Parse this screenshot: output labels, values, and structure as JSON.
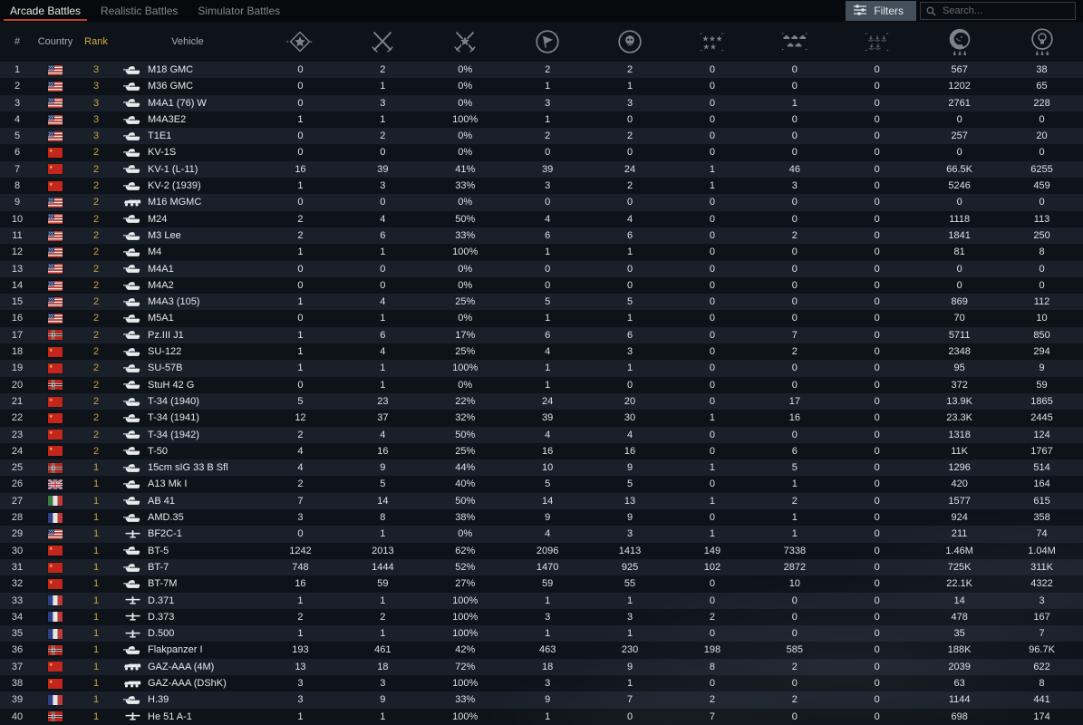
{
  "tabs": [
    {
      "label": "Arcade Battles",
      "active": true
    },
    {
      "label": "Realistic Battles",
      "active": false
    },
    {
      "label": "Simulator Battles",
      "active": false
    }
  ],
  "filters_button": {
    "label": "Filters"
  },
  "search": {
    "placeholder": "Search..."
  },
  "colors": {
    "background": "#0e1319",
    "row_stripe": "#19202a",
    "tab_underline": "#b5442a",
    "rank_gold": "#c9a23f",
    "icon_gray": "#7b838e"
  },
  "table": {
    "headers": {
      "num": "#",
      "country": "Country",
      "rank": "Rank",
      "vehicle": "Vehicle"
    },
    "stat_columns": [
      {
        "name": "respawns",
        "icon": "spawn-star-icon"
      },
      {
        "name": "battles",
        "icon": "crossed-swords-icon"
      },
      {
        "name": "win-rate",
        "icon": "victories-swords-star-icon"
      },
      {
        "name": "missions",
        "icon": "flag-circle-icon"
      },
      {
        "name": "deaths",
        "icon": "skull-circle-icon"
      },
      {
        "name": "air-targets-destroyed",
        "icon": "air-targets-stars-icon"
      },
      {
        "name": "ground-targets-destroyed",
        "icon": "ground-targets-tanks-icon"
      },
      {
        "name": "naval-targets-destroyed",
        "icon": "naval-targets-anchors-icon"
      },
      {
        "name": "silver-lions-earned",
        "icon": "silver-lion-icon"
      },
      {
        "name": "research-points-earned",
        "icon": "research-bulb-icon"
      }
    ],
    "rows": [
      {
        "num": 1,
        "country": "usa",
        "rank": "3",
        "vehicle": "M18 GMC",
        "type": "tank",
        "stats": [
          "0",
          "2",
          "0%",
          "2",
          "2",
          "0",
          "0",
          "0",
          "567",
          "38"
        ]
      },
      {
        "num": 2,
        "country": "usa",
        "rank": "3",
        "vehicle": "M36 GMC",
        "type": "tank",
        "stats": [
          "0",
          "1",
          "0%",
          "1",
          "1",
          "0",
          "0",
          "0",
          "1202",
          "65"
        ]
      },
      {
        "num": 3,
        "country": "usa",
        "rank": "3",
        "vehicle": "M4A1 (76) W",
        "type": "tank",
        "stats": [
          "0",
          "3",
          "0%",
          "3",
          "3",
          "0",
          "1",
          "0",
          "2761",
          "228"
        ]
      },
      {
        "num": 4,
        "country": "usa",
        "rank": "3",
        "vehicle": "M4A3E2",
        "type": "tank",
        "stats": [
          "1",
          "1",
          "100%",
          "1",
          "0",
          "0",
          "0",
          "0",
          "0",
          "0"
        ]
      },
      {
        "num": 5,
        "country": "usa",
        "rank": "3",
        "vehicle": "T1E1",
        "type": "tank",
        "stats": [
          "0",
          "2",
          "0%",
          "2",
          "2",
          "0",
          "0",
          "0",
          "257",
          "20"
        ]
      },
      {
        "num": 6,
        "country": "ussr",
        "rank": "2",
        "vehicle": "KV-1S",
        "type": "tank",
        "stats": [
          "0",
          "0",
          "0%",
          "0",
          "0",
          "0",
          "0",
          "0",
          "0",
          "0"
        ]
      },
      {
        "num": 7,
        "country": "ussr",
        "rank": "2",
        "vehicle": "KV-1 (L-11)",
        "type": "tank",
        "stats": [
          "16",
          "39",
          "41%",
          "39",
          "24",
          "1",
          "46",
          "0",
          "66.5K",
          "6255"
        ]
      },
      {
        "num": 8,
        "country": "ussr",
        "rank": "2",
        "vehicle": "KV-2 (1939)",
        "type": "tank",
        "stats": [
          "1",
          "3",
          "33%",
          "3",
          "2",
          "1",
          "3",
          "0",
          "5246",
          "459"
        ]
      },
      {
        "num": 9,
        "country": "usa",
        "rank": "2",
        "vehicle": "M16 MGMC",
        "type": "truck",
        "stats": [
          "0",
          "0",
          "0%",
          "0",
          "0",
          "0",
          "0",
          "0",
          "0",
          "0"
        ]
      },
      {
        "num": 10,
        "country": "usa",
        "rank": "2",
        "vehicle": "M24",
        "type": "tank",
        "stats": [
          "2",
          "4",
          "50%",
          "4",
          "4",
          "0",
          "0",
          "0",
          "1118",
          "113"
        ]
      },
      {
        "num": 11,
        "country": "usa",
        "rank": "2",
        "vehicle": "M3 Lee",
        "type": "tank",
        "stats": [
          "2",
          "6",
          "33%",
          "6",
          "6",
          "0",
          "2",
          "0",
          "1841",
          "250"
        ]
      },
      {
        "num": 12,
        "country": "usa",
        "rank": "2",
        "vehicle": "M4",
        "type": "tank",
        "stats": [
          "1",
          "1",
          "100%",
          "1",
          "1",
          "0",
          "0",
          "0",
          "81",
          "8"
        ]
      },
      {
        "num": 13,
        "country": "usa",
        "rank": "2",
        "vehicle": "M4A1",
        "type": "tank",
        "stats": [
          "0",
          "0",
          "0%",
          "0",
          "0",
          "0",
          "0",
          "0",
          "0",
          "0"
        ]
      },
      {
        "num": 14,
        "country": "usa",
        "rank": "2",
        "vehicle": "M4A2",
        "type": "tank",
        "stats": [
          "0",
          "0",
          "0%",
          "0",
          "0",
          "0",
          "0",
          "0",
          "0",
          "0"
        ]
      },
      {
        "num": 15,
        "country": "usa",
        "rank": "2",
        "vehicle": "M4A3 (105)",
        "type": "tank",
        "stats": [
          "1",
          "4",
          "25%",
          "5",
          "5",
          "0",
          "0",
          "0",
          "869",
          "112"
        ]
      },
      {
        "num": 16,
        "country": "usa",
        "rank": "2",
        "vehicle": "M5A1",
        "type": "tank",
        "stats": [
          "0",
          "1",
          "0%",
          "1",
          "1",
          "0",
          "0",
          "0",
          "70",
          "10"
        ]
      },
      {
        "num": 17,
        "country": "germany",
        "rank": "2",
        "vehicle": "Pz.III J1",
        "type": "tank",
        "stats": [
          "1",
          "6",
          "17%",
          "6",
          "6",
          "0",
          "7",
          "0",
          "5711",
          "850"
        ]
      },
      {
        "num": 18,
        "country": "ussr",
        "rank": "2",
        "vehicle": "SU-122",
        "type": "tank",
        "stats": [
          "1",
          "4",
          "25%",
          "4",
          "3",
          "0",
          "2",
          "0",
          "2348",
          "294"
        ]
      },
      {
        "num": 19,
        "country": "ussr",
        "rank": "2",
        "vehicle": "SU-57B",
        "type": "tank",
        "stats": [
          "1",
          "1",
          "100%",
          "1",
          "1",
          "0",
          "0",
          "0",
          "95",
          "9"
        ]
      },
      {
        "num": 20,
        "country": "germany",
        "rank": "2",
        "vehicle": "StuH 42 G",
        "type": "tank",
        "stats": [
          "0",
          "1",
          "0%",
          "1",
          "0",
          "0",
          "0",
          "0",
          "372",
          "59"
        ]
      },
      {
        "num": 21,
        "country": "ussr",
        "rank": "2",
        "vehicle": "T-34 (1940)",
        "type": "tank",
        "stats": [
          "5",
          "23",
          "22%",
          "24",
          "20",
          "0",
          "17",
          "0",
          "13.9K",
          "1865"
        ]
      },
      {
        "num": 22,
        "country": "ussr",
        "rank": "2",
        "vehicle": "T-34 (1941)",
        "type": "tank",
        "stats": [
          "12",
          "37",
          "32%",
          "39",
          "30",
          "1",
          "16",
          "0",
          "23.3K",
          "2445"
        ]
      },
      {
        "num": 23,
        "country": "ussr",
        "rank": "2",
        "vehicle": "T-34 (1942)",
        "type": "tank",
        "stats": [
          "2",
          "4",
          "50%",
          "4",
          "4",
          "0",
          "0",
          "0",
          "1318",
          "124"
        ]
      },
      {
        "num": 24,
        "country": "ussr",
        "rank": "2",
        "vehicle": "T-50",
        "type": "tank",
        "stats": [
          "4",
          "16",
          "25%",
          "16",
          "16",
          "0",
          "6",
          "0",
          "11K",
          "1767"
        ]
      },
      {
        "num": 25,
        "country": "germany",
        "rank": "1",
        "vehicle": "15cm sIG 33 B Sfl",
        "type": "tank",
        "stats": [
          "4",
          "9",
          "44%",
          "10",
          "9",
          "1",
          "5",
          "0",
          "1296",
          "514"
        ]
      },
      {
        "num": 26,
        "country": "uk",
        "rank": "1",
        "vehicle": "A13 Mk I",
        "type": "tank",
        "stats": [
          "2",
          "5",
          "40%",
          "5",
          "5",
          "0",
          "1",
          "0",
          "420",
          "164"
        ]
      },
      {
        "num": 27,
        "country": "italy",
        "rank": "1",
        "vehicle": "AB 41",
        "type": "tank",
        "stats": [
          "7",
          "14",
          "50%",
          "14",
          "13",
          "1",
          "2",
          "0",
          "1577",
          "615"
        ]
      },
      {
        "num": 28,
        "country": "france",
        "rank": "1",
        "vehicle": "AMD.35",
        "type": "tank",
        "stats": [
          "3",
          "8",
          "38%",
          "9",
          "9",
          "0",
          "1",
          "0",
          "924",
          "358"
        ]
      },
      {
        "num": 29,
        "country": "usa",
        "rank": "1",
        "vehicle": "BF2C-1",
        "type": "plane",
        "stats": [
          "0",
          "1",
          "0%",
          "4",
          "3",
          "1",
          "1",
          "0",
          "211",
          "74"
        ]
      },
      {
        "num": 30,
        "country": "ussr",
        "rank": "1",
        "vehicle": "BT-5",
        "type": "tank",
        "stats": [
          "1242",
          "2013",
          "62%",
          "2096",
          "1413",
          "149",
          "7338",
          "0",
          "1.46M",
          "1.04M"
        ]
      },
      {
        "num": 31,
        "country": "ussr",
        "rank": "1",
        "vehicle": "BT-7",
        "type": "tank",
        "stats": [
          "748",
          "1444",
          "52%",
          "1470",
          "925",
          "102",
          "2872",
          "0",
          "725K",
          "311K"
        ]
      },
      {
        "num": 32,
        "country": "ussr",
        "rank": "1",
        "vehicle": "BT-7M",
        "type": "tank",
        "stats": [
          "16",
          "59",
          "27%",
          "59",
          "55",
          "0",
          "10",
          "0",
          "22.1K",
          "4322"
        ]
      },
      {
        "num": 33,
        "country": "france",
        "rank": "1",
        "vehicle": "D.371",
        "type": "plane",
        "stats": [
          "1",
          "1",
          "100%",
          "1",
          "1",
          "0",
          "0",
          "0",
          "14",
          "3"
        ]
      },
      {
        "num": 34,
        "country": "france",
        "rank": "1",
        "vehicle": "D.373",
        "type": "plane",
        "stats": [
          "2",
          "2",
          "100%",
          "3",
          "3",
          "2",
          "0",
          "0",
          "478",
          "167"
        ]
      },
      {
        "num": 35,
        "country": "france",
        "rank": "1",
        "vehicle": "D.500",
        "type": "plane",
        "stats": [
          "1",
          "1",
          "100%",
          "1",
          "1",
          "0",
          "0",
          "0",
          "35",
          "7"
        ]
      },
      {
        "num": 36,
        "country": "germany",
        "rank": "1",
        "vehicle": "Flakpanzer I",
        "type": "tank",
        "stats": [
          "193",
          "461",
          "42%",
          "463",
          "230",
          "198",
          "585",
          "0",
          "188K",
          "96.7K"
        ]
      },
      {
        "num": 37,
        "country": "ussr",
        "rank": "1",
        "vehicle": "GAZ-AAA (4M)",
        "type": "truck",
        "stats": [
          "13",
          "18",
          "72%",
          "18",
          "9",
          "8",
          "2",
          "0",
          "2039",
          "622"
        ]
      },
      {
        "num": 38,
        "country": "ussr",
        "rank": "1",
        "vehicle": "GAZ-AAA (DShK)",
        "type": "truck",
        "stats": [
          "3",
          "3",
          "100%",
          "3",
          "1",
          "0",
          "0",
          "0",
          "63",
          "8"
        ]
      },
      {
        "num": 39,
        "country": "france",
        "rank": "1",
        "vehicle": "H.39",
        "type": "tank",
        "stats": [
          "3",
          "9",
          "33%",
          "9",
          "7",
          "2",
          "2",
          "0",
          "1144",
          "441"
        ]
      },
      {
        "num": 40,
        "country": "germany",
        "rank": "1",
        "vehicle": "He 51 A-1",
        "type": "plane",
        "stats": [
          "1",
          "1",
          "100%",
          "1",
          "0",
          "7",
          "0",
          "0",
          "698",
          "174"
        ]
      }
    ]
  }
}
